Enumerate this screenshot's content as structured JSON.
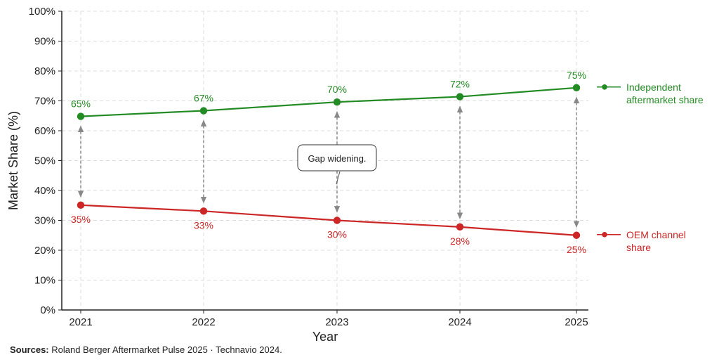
{
  "chart_data": {
    "type": "line",
    "x": [
      "2021",
      "2022",
      "2023",
      "2024",
      "2025"
    ],
    "xlabel": "Year",
    "ylabel": "Market Share (%)",
    "ylim": [
      0,
      100
    ],
    "yticks": [
      "0%",
      "10%",
      "20%",
      "30%",
      "40%",
      "50%",
      "60%",
      "70%",
      "80%",
      "90%",
      "100%"
    ],
    "grid": true,
    "legend": "right",
    "series": [
      {
        "name": "Independent aftermarket share",
        "legend_lines": [
          "Independent",
          "aftermarket share"
        ],
        "values": [
          65,
          67,
          70,
          72,
          75
        ],
        "labels": [
          "65%",
          "67%",
          "70%",
          "72%",
          "75%"
        ],
        "plotted": [
          64.8,
          66.7,
          69.6,
          71.4,
          74.4
        ],
        "color": "#238b23"
      },
      {
        "name": "OEM channel share",
        "legend_lines": [
          "OEM channel",
          "share"
        ],
        "values": [
          35,
          33,
          30,
          28,
          25
        ],
        "labels": [
          "35%",
          "33%",
          "30%",
          "28%",
          "25%"
        ],
        "plotted": [
          35.1,
          33.1,
          30.0,
          27.8,
          25.0
        ],
        "color": "#cc2626"
      }
    ],
    "annotations": [
      "Gap widening."
    ]
  },
  "source": {
    "label": "Sources:",
    "text": " Roland Berger Aftermarket Pulse 2025 · Technavio 2024."
  }
}
